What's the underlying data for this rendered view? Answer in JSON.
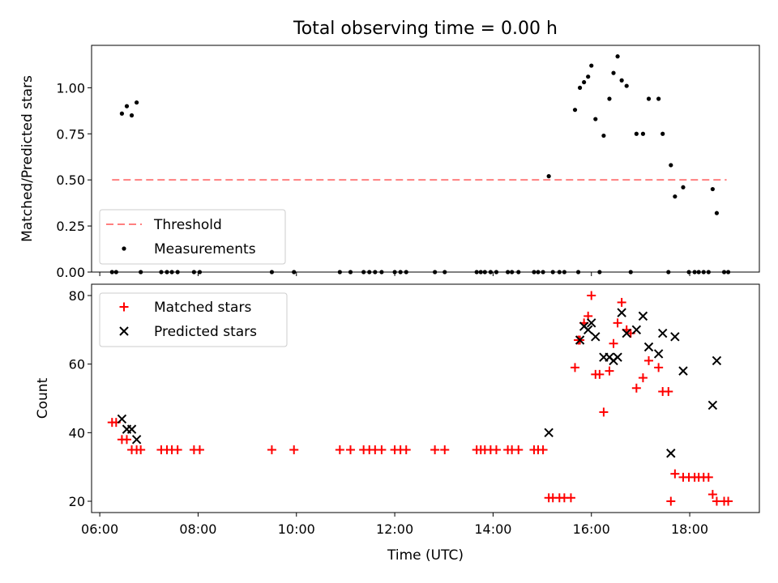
{
  "figure": {
    "title": "Total observing time = 0.00 h"
  },
  "colors": {
    "threshold": "#ff7f7f",
    "measurements": "#000000",
    "matched": "#ff0000",
    "predicted": "#000000"
  },
  "chart_data": [
    {
      "type": "scatter",
      "ylabel": "Matched/Predicted stars",
      "xlim": [
        "05:50",
        "19:25"
      ],
      "ylim": [
        0,
        1.23
      ],
      "y_ticks": [
        "0.00",
        "0.25",
        "0.50",
        "0.75",
        "1.00"
      ],
      "legend": {
        "placement": "lower-left",
        "entries": [
          "Threshold",
          "Measurements"
        ]
      },
      "threshold": {
        "name": "Threshold",
        "value": 0.5,
        "x": [
          "06:15",
          "18:45"
        ]
      },
      "measurements": {
        "name": "Measurements",
        "points": [
          [
            "06:15",
            0
          ],
          [
            "06:20",
            0
          ],
          [
            "06:27",
            0.86
          ],
          [
            "06:33",
            0.9
          ],
          [
            "06:39",
            0.85
          ],
          [
            "06:45",
            0.92
          ],
          [
            "06:50",
            0
          ],
          [
            "07:15",
            0
          ],
          [
            "07:22",
            0
          ],
          [
            "07:28",
            0
          ],
          [
            "07:35",
            0
          ],
          [
            "07:55",
            0
          ],
          [
            "08:02",
            0
          ],
          [
            "09:30",
            0
          ],
          [
            "09:57",
            0
          ],
          [
            "10:53",
            0
          ],
          [
            "11:06",
            0
          ],
          [
            "11:22",
            0
          ],
          [
            "11:29",
            0
          ],
          [
            "11:36",
            0
          ],
          [
            "11:44",
            0
          ],
          [
            "12:00",
            0
          ],
          [
            "12:07",
            0
          ],
          [
            "12:14",
            0
          ],
          [
            "12:49",
            0
          ],
          [
            "13:01",
            0
          ],
          [
            "13:40",
            0
          ],
          [
            "13:45",
            0
          ],
          [
            "13:50",
            0
          ],
          [
            "13:57",
            0
          ],
          [
            "14:04",
            0
          ],
          [
            "14:18",
            0
          ],
          [
            "14:23",
            0
          ],
          [
            "14:31",
            0
          ],
          [
            "14:50",
            0
          ],
          [
            "14:55",
            0
          ],
          [
            "15:01",
            0
          ],
          [
            "15:08",
            0.52
          ],
          [
            "15:13",
            0
          ],
          [
            "15:21",
            0
          ],
          [
            "15:27",
            0
          ],
          [
            "15:40",
            0.88
          ],
          [
            "15:44",
            0
          ],
          [
            "15:46",
            1.0
          ],
          [
            "15:51",
            1.03
          ],
          [
            "15:56",
            1.06
          ],
          [
            "16:00",
            1.12
          ],
          [
            "16:05",
            0.83
          ],
          [
            "16:10",
            0
          ],
          [
            "16:15",
            0.74
          ],
          [
            "16:22",
            0.94
          ],
          [
            "16:27",
            1.08
          ],
          [
            "16:32",
            1.17
          ],
          [
            "16:37",
            1.04
          ],
          [
            "16:43",
            1.01
          ],
          [
            "16:48",
            0
          ],
          [
            "16:55",
            0.75
          ],
          [
            "17:03",
            0.75
          ],
          [
            "17:10",
            0.94
          ],
          [
            "17:22",
            0.94
          ],
          [
            "17:27",
            0.75
          ],
          [
            "17:34",
            0
          ],
          [
            "17:37",
            0.58
          ],
          [
            "17:42",
            0.41
          ],
          [
            "17:52",
            0.46
          ],
          [
            "17:59",
            0
          ],
          [
            "18:06",
            0
          ],
          [
            "18:11",
            0
          ],
          [
            "18:17",
            0
          ],
          [
            "18:23",
            0
          ],
          [
            "18:28",
            0.45
          ],
          [
            "18:33",
            0.32
          ],
          [
            "18:42",
            0
          ],
          [
            "18:47",
            0
          ]
        ]
      }
    },
    {
      "type": "scatter",
      "xlabel": "Time (UTC)",
      "ylabel": "Count",
      "xlim": [
        "05:50",
        "19:25"
      ],
      "ylim": [
        16.7,
        83.3
      ],
      "x_ticks": [
        "06:00",
        "08:00",
        "10:00",
        "12:00",
        "14:00",
        "16:00",
        "18:00"
      ],
      "y_ticks": [
        "20",
        "40",
        "60",
        "80"
      ],
      "legend": {
        "placement": "upper-left",
        "entries": [
          "Matched stars",
          "Predicted stars"
        ]
      },
      "series": [
        {
          "name": "Matched stars",
          "marker": "+",
          "points": [
            [
              "06:15",
              43
            ],
            [
              "06:20",
              43
            ],
            [
              "06:27",
              38
            ],
            [
              "06:33",
              38
            ],
            [
              "06:39",
              35
            ],
            [
              "06:45",
              35
            ],
            [
              "06:50",
              35
            ],
            [
              "07:15",
              35
            ],
            [
              "07:22",
              35
            ],
            [
              "07:28",
              35
            ],
            [
              "07:35",
              35
            ],
            [
              "07:55",
              35
            ],
            [
              "08:02",
              35
            ],
            [
              "09:30",
              35
            ],
            [
              "09:57",
              35
            ],
            [
              "10:53",
              35
            ],
            [
              "11:06",
              35
            ],
            [
              "11:22",
              35
            ],
            [
              "11:29",
              35
            ],
            [
              "11:36",
              35
            ],
            [
              "11:44",
              35
            ],
            [
              "12:00",
              35
            ],
            [
              "12:07",
              35
            ],
            [
              "12:14",
              35
            ],
            [
              "12:49",
              35
            ],
            [
              "13:01",
              35
            ],
            [
              "13:40",
              35
            ],
            [
              "13:45",
              35
            ],
            [
              "13:50",
              35
            ],
            [
              "13:57",
              35
            ],
            [
              "14:04",
              35
            ],
            [
              "14:18",
              35
            ],
            [
              "14:23",
              35
            ],
            [
              "14:31",
              35
            ],
            [
              "14:50",
              35
            ],
            [
              "14:55",
              35
            ],
            [
              "15:01",
              35
            ],
            [
              "15:08",
              21
            ],
            [
              "15:13",
              21
            ],
            [
              "15:21",
              21
            ],
            [
              "15:27",
              21
            ],
            [
              "15:35",
              21
            ],
            [
              "15:40",
              59
            ],
            [
              "15:44",
              67
            ],
            [
              "15:46",
              67
            ],
            [
              "15:51",
              72
            ],
            [
              "15:56",
              74
            ],
            [
              "16:00",
              80
            ],
            [
              "16:05",
              57
            ],
            [
              "16:10",
              57
            ],
            [
              "16:15",
              46
            ],
            [
              "16:22",
              58
            ],
            [
              "16:27",
              66
            ],
            [
              "16:32",
              72
            ],
            [
              "16:37",
              78
            ],
            [
              "16:43",
              70
            ],
            [
              "16:48",
              69
            ],
            [
              "16:55",
              53
            ],
            [
              "17:03",
              56
            ],
            [
              "17:10",
              61
            ],
            [
              "17:22",
              59
            ],
            [
              "17:27",
              52
            ],
            [
              "17:34",
              52
            ],
            [
              "17:37",
              20
            ],
            [
              "17:42",
              28
            ],
            [
              "17:52",
              27
            ],
            [
              "17:59",
              27
            ],
            [
              "18:06",
              27
            ],
            [
              "18:11",
              27
            ],
            [
              "18:17",
              27
            ],
            [
              "18:23",
              27
            ],
            [
              "18:28",
              22
            ],
            [
              "18:33",
              20
            ],
            [
              "18:42",
              20
            ],
            [
              "18:47",
              20
            ]
          ]
        },
        {
          "name": "Predicted stars",
          "marker": "x",
          "points": [
            [
              "06:27",
              44
            ],
            [
              "06:33",
              41
            ],
            [
              "06:39",
              41
            ],
            [
              "06:45",
              38
            ],
            [
              "15:08",
              40
            ],
            [
              "15:46",
              67
            ],
            [
              "15:51",
              71
            ],
            [
              "15:56",
              70
            ],
            [
              "16:00",
              72
            ],
            [
              "16:05",
              68
            ],
            [
              "16:15",
              62
            ],
            [
              "16:22",
              62
            ],
            [
              "16:27",
              61
            ],
            [
              "16:32",
              62
            ],
            [
              "16:37",
              75
            ],
            [
              "16:43",
              69
            ],
            [
              "16:55",
              70
            ],
            [
              "17:03",
              74
            ],
            [
              "17:10",
              65
            ],
            [
              "17:22",
              63
            ],
            [
              "17:27",
              69
            ],
            [
              "17:37",
              34
            ],
            [
              "17:42",
              68
            ],
            [
              "17:52",
              58
            ],
            [
              "18:28",
              48
            ],
            [
              "18:33",
              61
            ]
          ]
        }
      ]
    }
  ]
}
